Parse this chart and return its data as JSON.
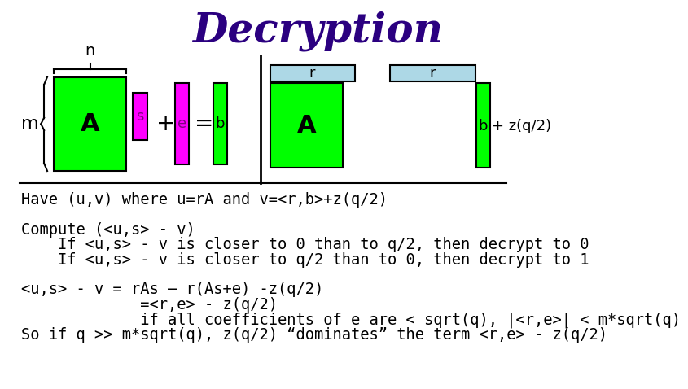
{
  "title": "Decryption",
  "title_color": "#2B0080",
  "title_fontsize": 36,
  "bg_color": "#FFFFFF",
  "green": "#00FF00",
  "magenta": "#FF00FF",
  "lightblue": "#ADD8E6",
  "text_body": [
    "Have (u,v) where u=rA and v=<r,b>+z(q/2)",
    "",
    "Compute (<u,s> - v)",
    "    If <u,s> - v is closer to 0 than to q/2, then decrypt to 0",
    "    If <u,s> - v is closer to q/2 than to 0, then decrypt to 1",
    "",
    "<u,s> - v = rAs – r(As+e) -z(q/2)",
    "             =<r,e> - z(q/2)",
    "             if all coefficients of e are < sqrt(q), |<r,e>| < m*sqrt(q)",
    "So if q >> m*sqrt(q), z(q/2) “dominates” the term <r,e> - z(q/2)"
  ],
  "font_size_body": 13.5
}
